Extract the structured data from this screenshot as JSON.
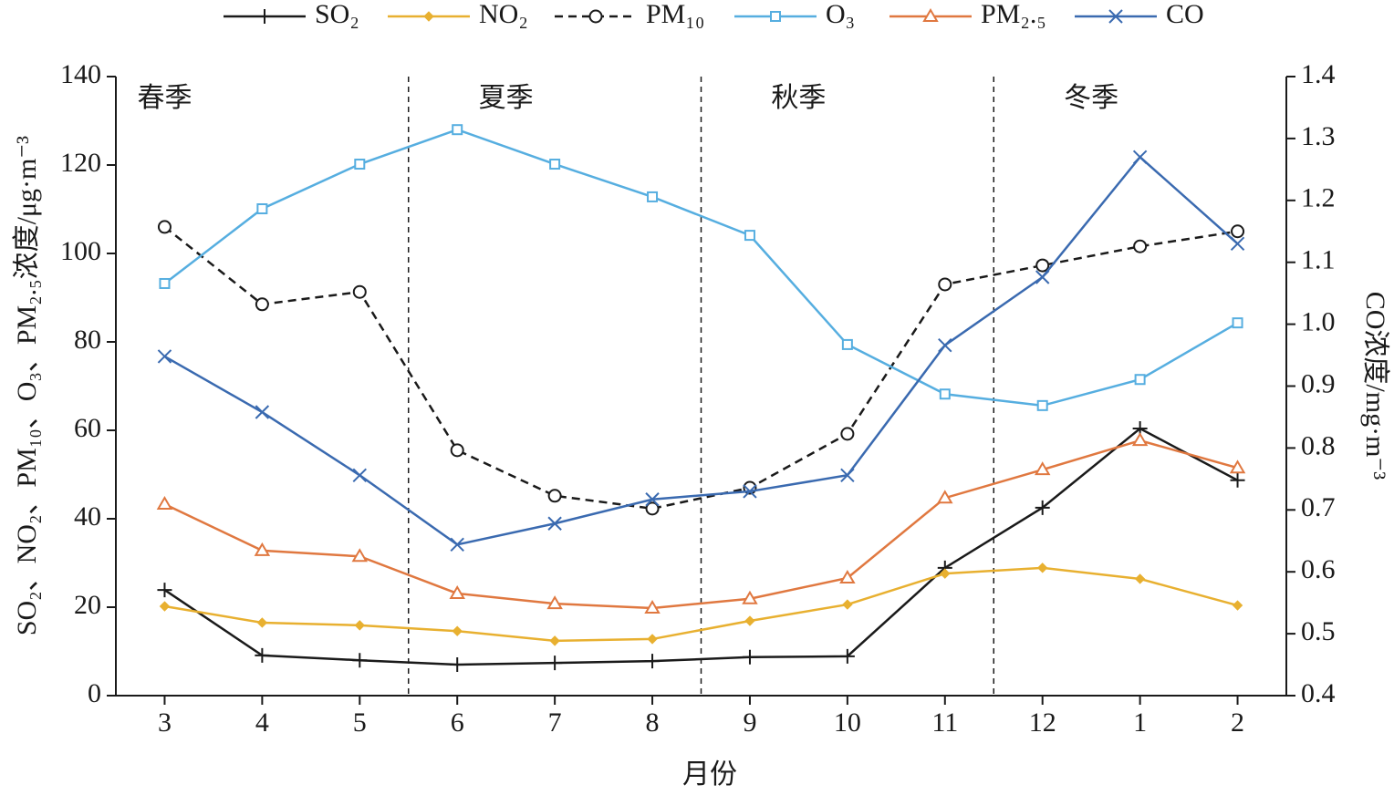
{
  "chart_data": {
    "type": "line",
    "categories": [
      "3",
      "4",
      "5",
      "6",
      "7",
      "8",
      "9",
      "10",
      "11",
      "12",
      "1",
      "2"
    ],
    "series": [
      {
        "name": "SO₂",
        "color": "#1a1a1a",
        "marker": "plus",
        "dash": false,
        "values": [
          23.9,
          9.1,
          8.0,
          7.0,
          7.4,
          7.8,
          8.7,
          8.9,
          28.9,
          42.5,
          60.4,
          48.7
        ]
      },
      {
        "name": "NO₂",
        "color": "#e8b030",
        "marker": "diamond",
        "dash": false,
        "values": [
          20.2,
          16.5,
          15.9,
          14.6,
          12.4,
          12.8,
          16.9,
          20.6,
          27.6,
          28.9,
          26.4,
          20.4
        ]
      },
      {
        "name": "PM₁₀",
        "color": "#1a1a1a",
        "marker": "circle",
        "dash": true,
        "values": [
          106,
          88.5,
          91.3,
          55.5,
          45.2,
          42.3,
          47.0,
          59.2,
          93.0,
          97.3,
          101.6,
          105
        ]
      },
      {
        "name": "O₃",
        "color": "#56aee0",
        "marker": "square",
        "dash": false,
        "values": [
          93.2,
          110.1,
          120.2,
          128,
          120.2,
          112.8,
          104.1,
          79.4,
          68.2,
          65.6,
          71.5,
          84.3
        ]
      },
      {
        "name": "PM₂.₅",
        "color": "#e07840",
        "marker": "triangle",
        "dash": false,
        "values": [
          43.3,
          32.8,
          31.5,
          23.1,
          20.8,
          19.8,
          21.9,
          26.6,
          44.7,
          51.1,
          57.7,
          51.5
        ]
      },
      {
        "name": "CO",
        "color": "#3a6ab0",
        "marker": "cross",
        "dash": false,
        "axis": "y2",
        "values": [
          0.948,
          0.858,
          0.756,
          0.644,
          0.678,
          0.717,
          0.73,
          0.756,
          0.966,
          1.076,
          1.27,
          1.13
        ]
      }
    ],
    "xlabel": "月份",
    "ylabel": "SO₂、NO₂、PM₁₀、O₃、PM₂.₅浓度/μg·m⁻³",
    "y2label": "CO浓度/mg·m⁻³",
    "ylim": [
      0,
      140
    ],
    "yticks": [
      0,
      20,
      40,
      60,
      80,
      100,
      120,
      140
    ],
    "y2lim": [
      0.4,
      1.4
    ],
    "y2ticks": [
      0.4,
      0.5,
      0.6,
      0.7,
      0.8,
      0.9,
      {
        "value": 1,
        "label": "1.0"
      },
      1.1,
      1.2,
      1.3,
      1.4
    ],
    "seasons": [
      "春季",
      "夏季",
      "秋季",
      "冬季"
    ]
  }
}
